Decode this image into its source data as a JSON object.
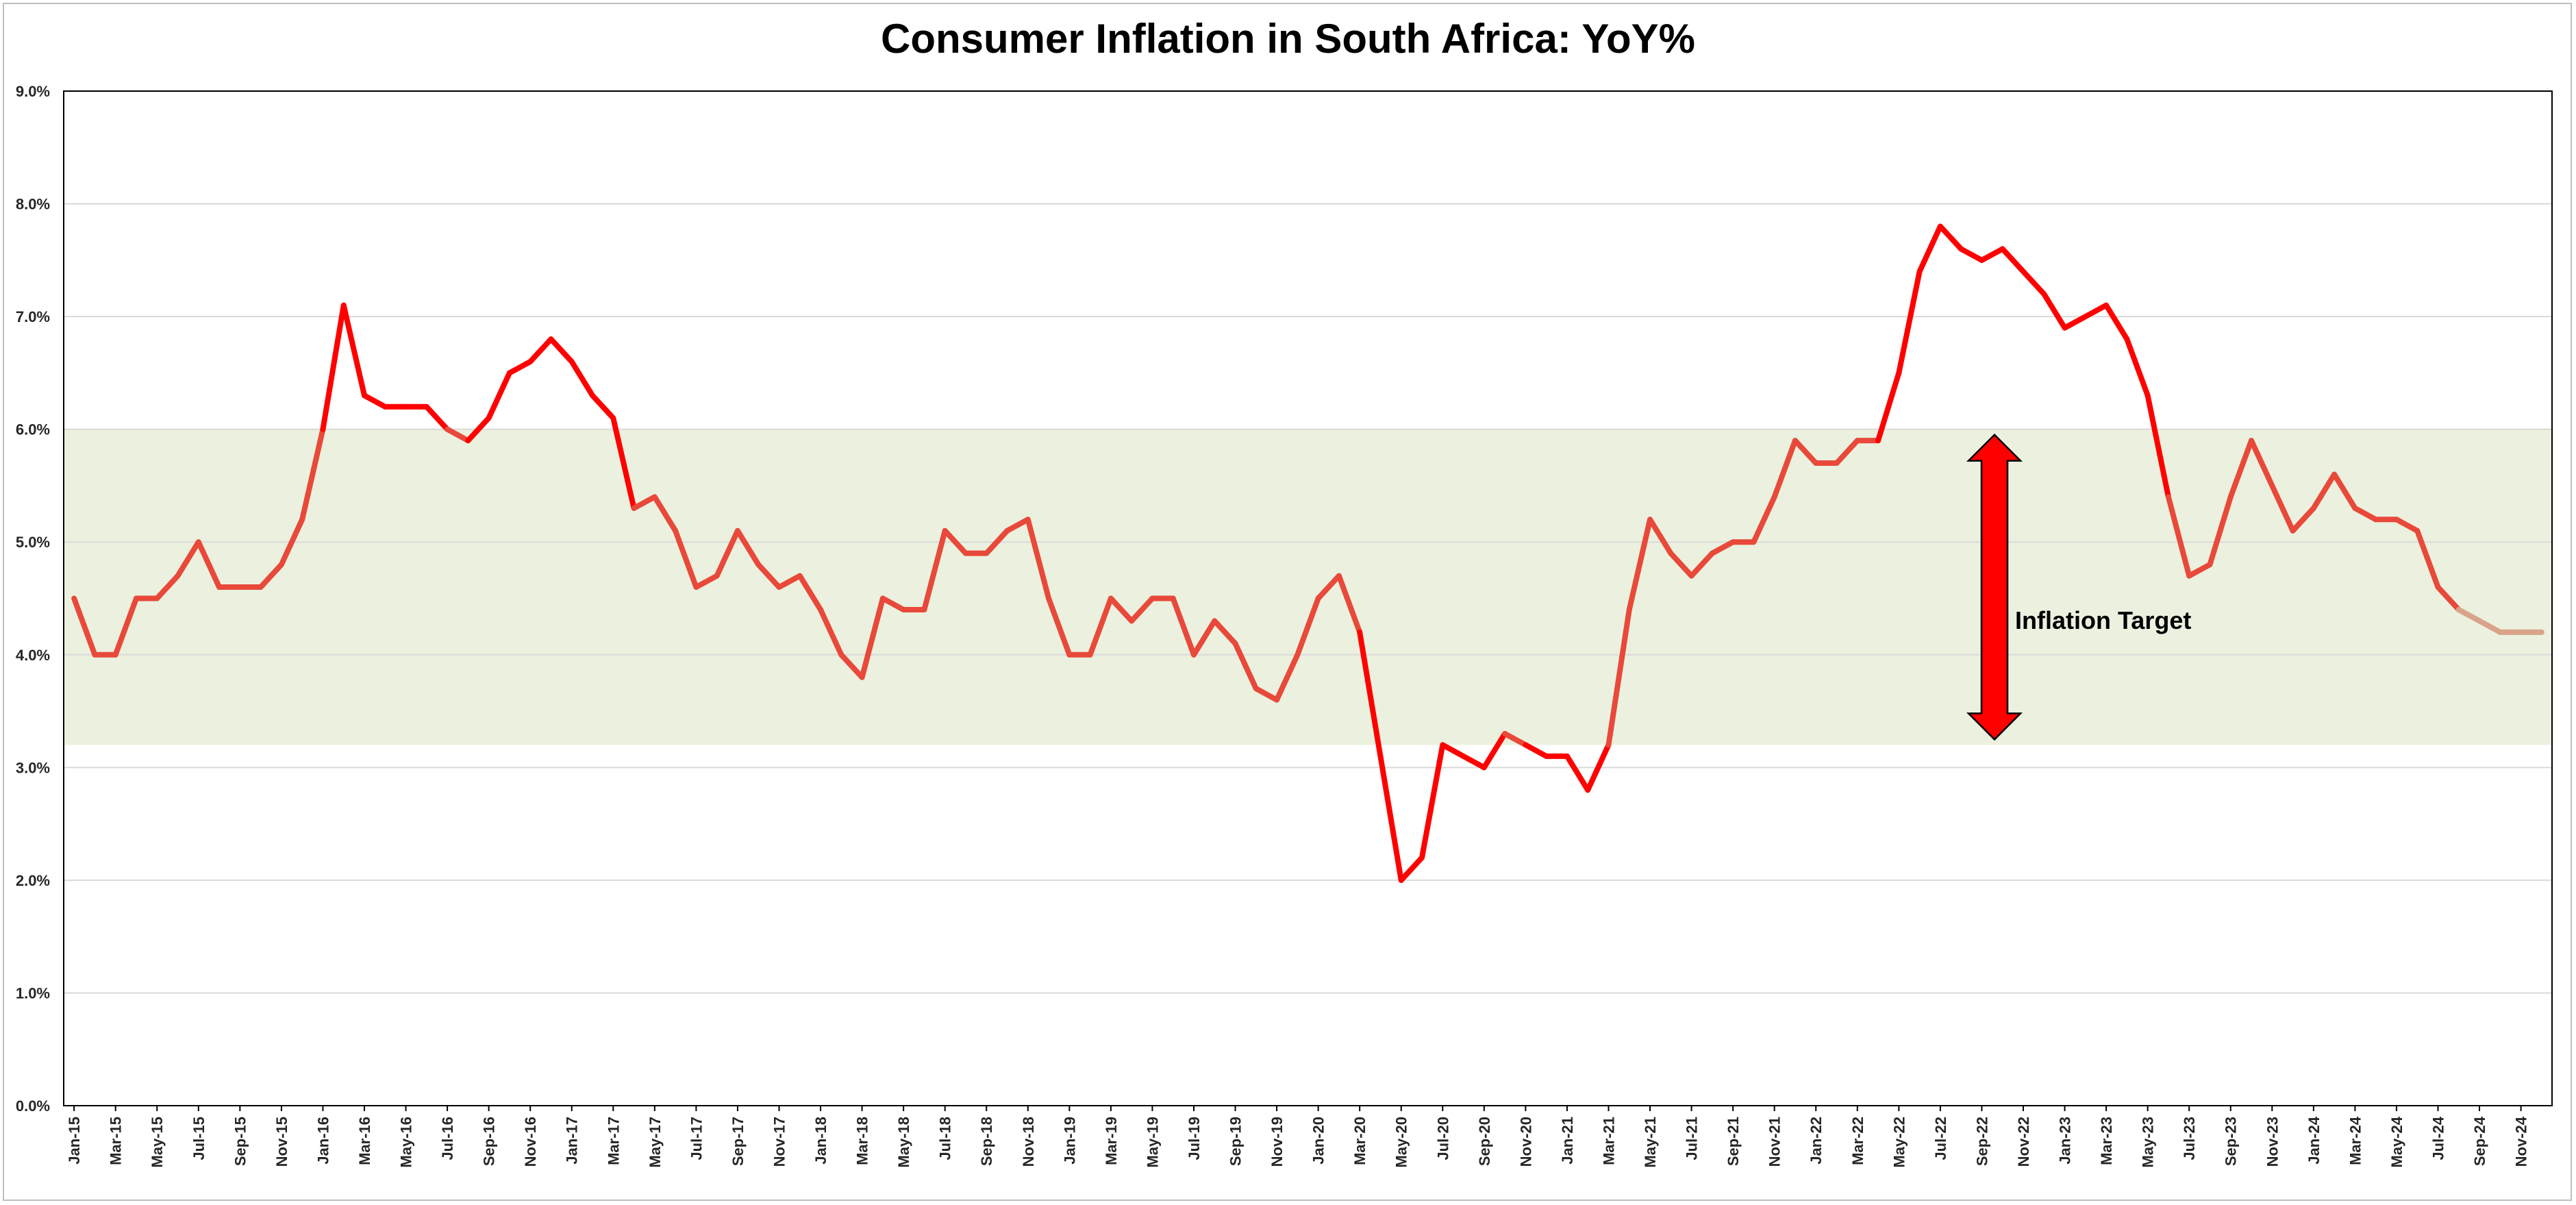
{
  "colors": {
    "line": "#e8493a",
    "line_peak": "#ff0000",
    "forecast": "#d9a48a",
    "band": "#ebf1de",
    "grid": "#d9d9d9",
    "arrow": "#ff0000"
  },
  "chart_data": {
    "type": "line",
    "title": "Consumer Inflation in South Africa: YoY%",
    "xlabel": "",
    "ylabel": "",
    "ylim": [
      0,
      9
    ],
    "yticks": [
      0,
      1,
      2,
      3,
      4,
      5,
      6,
      7,
      8,
      9
    ],
    "ytick_labels": [
      "0.0%",
      "1.0%",
      "2.0%",
      "3.0%",
      "4.0%",
      "5.0%",
      "6.0%",
      "7.0%",
      "8.0%",
      "9.0%"
    ],
    "x_start": "Jan-15",
    "x_end": "Dec-24",
    "xtick_labels": [
      "Jan-15",
      "Mar-15",
      "May-15",
      "Jul-15",
      "Sep-15",
      "Nov-15",
      "Jan-16",
      "Mar-16",
      "May-16",
      "Jul-16",
      "Sep-16",
      "Nov-16",
      "Jan-17",
      "Mar-17",
      "May-17",
      "Jul-17",
      "Sep-17",
      "Nov-17",
      "Jan-18",
      "Mar-18",
      "May-18",
      "Jul-18",
      "Sep-18",
      "Nov-18",
      "Jan-19",
      "Mar-19",
      "May-19",
      "Jul-19",
      "Sep-19",
      "Nov-19",
      "Jan-20",
      "Mar-20",
      "May-20",
      "Jul-20",
      "Sep-20",
      "Nov-20",
      "Jan-21",
      "Mar-21",
      "May-21",
      "Jul-21",
      "Sep-21",
      "Nov-21",
      "Jan-22",
      "Mar-22",
      "May-22",
      "Jul-22",
      "Sep-22",
      "Nov-22",
      "Jan-23",
      "Mar-23",
      "May-23",
      "Jul-23",
      "Sep-23",
      "Nov-23",
      "Jan-24",
      "Mar-24",
      "May-24",
      "Jul-24",
      "Sep-24",
      "Nov-24"
    ],
    "grid": true,
    "target_band": [
      3.2,
      6.0
    ],
    "annotation": "Inflation Target",
    "series": [
      {
        "values": [
          4.5,
          4.0,
          4.0,
          4.5,
          4.5,
          4.7,
          5.0,
          4.6,
          4.6,
          4.6,
          4.8,
          5.2,
          6.0,
          7.1,
          6.3,
          6.2,
          6.2,
          6.2,
          6.0,
          5.9,
          6.1,
          6.5,
          6.6,
          6.8,
          6.6,
          6.3,
          6.1,
          5.3,
          5.4,
          5.1,
          4.6,
          4.7,
          5.1,
          4.8,
          4.6,
          4.7,
          4.4,
          4.0,
          3.8,
          4.5,
          4.4,
          4.4,
          5.1,
          4.9,
          4.9,
          5.1,
          5.2,
          4.5,
          4.0,
          4.0,
          4.5,
          4.3,
          4.5,
          4.5,
          4.0,
          4.3,
          4.1,
          3.7,
          3.6,
          4.0,
          4.5,
          4.7,
          4.2,
          3.1,
          2.0,
          2.2,
          3.2,
          3.1,
          3.0,
          3.3,
          3.2,
          3.1,
          3.1,
          2.8,
          3.2,
          4.4,
          5.2,
          4.9,
          4.7,
          4.9,
          5.0,
          5.0,
          5.4,
          5.9,
          5.7,
          5.7,
          5.9,
          5.9,
          6.5,
          7.4,
          7.8,
          7.6,
          7.5,
          7.6,
          7.4,
          7.2,
          6.9,
          7.0,
          7.1,
          6.8,
          6.3,
          5.4,
          4.7,
          4.8,
          5.4,
          5.9,
          5.5,
          5.1,
          5.3,
          5.6,
          5.3,
          5.2,
          5.2,
          5.1,
          4.6,
          4.4,
          4.3,
          4.2,
          4.2,
          4.2
        ]
      }
    ]
  }
}
